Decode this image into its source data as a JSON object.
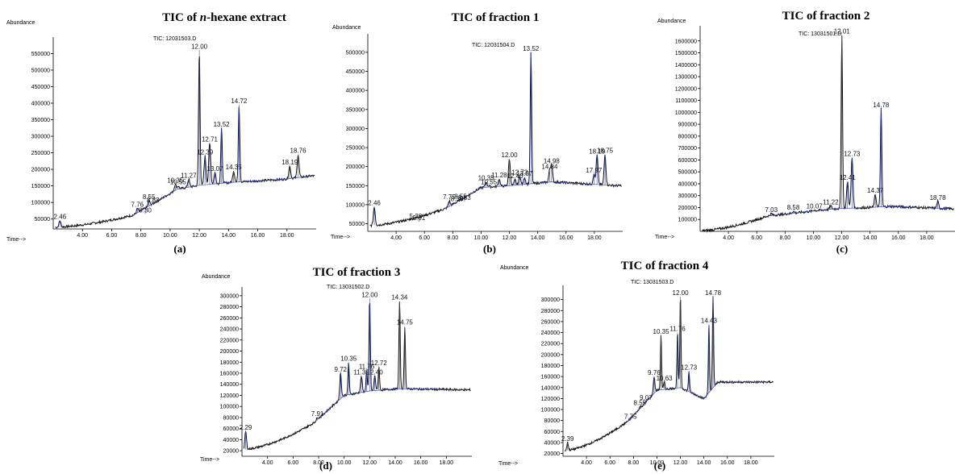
{
  "chart_data": [
    {
      "type": "line",
      "title": "TIC of n-hexane extract",
      "title_prefix": "TIC of ",
      "title_italic": "n",
      "title_suffix": "-hexane extract",
      "panel_label": "(a)",
      "trace_label": "TIC: 12031503.D",
      "ylabel": "Abundance",
      "xlabel": "Time-->",
      "xlim": [
        2.0,
        20.0
      ],
      "ylim": [
        20000,
        590000
      ],
      "yticks": [
        50000,
        100000,
        150000,
        200000,
        250000,
        300000,
        350000,
        400000,
        450000,
        500000,
        550000
      ],
      "xticks": [
        "4.00",
        "6.00",
        "8.00",
        "10.00",
        "12.00",
        "14.00",
        "16.00",
        "18.00"
      ],
      "start": 25000,
      "end": 160000,
      "baseline": [
        [
          7.5,
          62000
        ],
        [
          10.5,
          140000
        ],
        [
          12.0,
          152000
        ],
        [
          14.0,
          160000
        ],
        [
          17.8,
          170000
        ],
        [
          19.6,
          180000
        ]
      ],
      "peaks": [
        {
          "label": "2.46",
          "x": 2.46,
          "y": 45000
        },
        {
          "label": "7.76",
          "x": 7.76,
          "y": 82000
        },
        {
          "label": "8.30",
          "x": 8.3,
          "y": 65000
        },
        {
          "label": "8.55",
          "x": 8.55,
          "y": 105000
        },
        {
          "label": "8.83",
          "x": 8.83,
          "y": 95000
        },
        {
          "label": "10.35",
          "x": 10.35,
          "y": 155000
        },
        {
          "label": "10.55",
          "x": 10.55,
          "y": 150000
        },
        {
          "label": "11.27",
          "x": 11.27,
          "y": 170000
        },
        {
          "label": "12.00",
          "x": 12.0,
          "y": 560000
        },
        {
          "label": "12.39",
          "x": 12.39,
          "y": 240000
        },
        {
          "label": "12.71",
          "x": 12.71,
          "y": 280000
        },
        {
          "label": "13.07",
          "x": 13.07,
          "y": 190000
        },
        {
          "label": "13.52",
          "x": 13.52,
          "y": 325000
        },
        {
          "label": "14.35",
          "x": 14.35,
          "y": 195000
        },
        {
          "label": "14.72",
          "x": 14.72,
          "y": 395000
        },
        {
          "label": "18.19",
          "x": 18.19,
          "y": 210000
        },
        {
          "label": "18.76",
          "x": 18.76,
          "y": 245000
        }
      ]
    },
    {
      "type": "line",
      "title": "TIC of fraction 1",
      "panel_label": "(b)",
      "trace_label": "TIC: 12031504.D",
      "ylabel": "Abundance",
      "xlabel": "Time-->",
      "xlim": [
        2.0,
        20.0
      ],
      "ylim": [
        30000,
        540000
      ],
      "yticks": [
        50000,
        100000,
        150000,
        200000,
        250000,
        300000,
        350000,
        400000,
        450000,
        500000
      ],
      "xticks": [
        "4.00",
        "6.00",
        "8.00",
        "10.00",
        "12.00",
        "14.00",
        "16.00",
        "18.00"
      ],
      "start": 45000,
      "end": 140000,
      "baseline": [
        [
          7.5,
          90000
        ],
        [
          10.0,
          145000
        ],
        [
          12.0,
          150000
        ],
        [
          15.0,
          160000
        ],
        [
          19.6,
          150000
        ]
      ],
      "peaks": [
        {
          "label": "2.46",
          "x": 2.46,
          "y": 95000
        },
        {
          "label": "5.38",
          "x": 5.38,
          "y": 60000
        },
        {
          "label": "5.61",
          "x": 5.61,
          "y": 55000
        },
        {
          "label": "7.75",
          "x": 7.75,
          "y": 110000
        },
        {
          "label": "8.30",
          "x": 8.3,
          "y": 105000
        },
        {
          "label": "8.55",
          "x": 8.55,
          "y": 112000
        },
        {
          "label": "8.83",
          "x": 8.83,
          "y": 108000
        },
        {
          "label": "10.35",
          "x": 10.35,
          "y": 160000
        },
        {
          "label": "10.55",
          "x": 10.55,
          "y": 150000
        },
        {
          "label": "11.28",
          "x": 11.28,
          "y": 168000
        },
        {
          "label": "12.00",
          "x": 12.0,
          "y": 220000
        },
        {
          "label": "12.40",
          "x": 12.4,
          "y": 165000
        },
        {
          "label": "12.73",
          "x": 12.73,
          "y": 175000
        },
        {
          "label": "13.07",
          "x": 13.07,
          "y": 172000
        },
        {
          "label": "13.52",
          "x": 13.52,
          "y": 500000
        },
        {
          "label": "14.84",
          "x": 14.84,
          "y": 190000
        },
        {
          "label": "14.98",
          "x": 14.98,
          "y": 205000
        },
        {
          "label": "17.97",
          "x": 17.97,
          "y": 180000
        },
        {
          "label": "18.19",
          "x": 18.19,
          "y": 230000
        },
        {
          "label": "18.75",
          "x": 18.75,
          "y": 232000
        }
      ]
    },
    {
      "type": "line",
      "title": "TIC of fraction 2",
      "panel_label": "(c)",
      "trace_label": "TIC: 13031501.D",
      "ylabel": "Abundance",
      "xlabel": "Time-->",
      "xlim": [
        2.0,
        20.0
      ],
      "ylim": [
        0,
        1700000
      ],
      "yticks": [
        100000,
        200000,
        300000,
        400000,
        500000,
        600000,
        700000,
        800000,
        900000,
        1000000,
        1100000,
        1200000,
        1300000,
        1400000,
        1500000,
        1600000
      ],
      "xticks": [
        "4.00",
        "6.00",
        "8.00",
        "10.00",
        "12.00",
        "14.00",
        "16.00",
        "18.00"
      ],
      "start": 5000,
      "end": 160000,
      "baseline": [
        [
          6.8,
          130000
        ],
        [
          11.5,
          190000
        ],
        [
          13.8,
          200000
        ],
        [
          15.5,
          210000
        ],
        [
          19.6,
          190000
        ]
      ],
      "peaks": [
        {
          "label": "7.03",
          "x": 7.03,
          "y": 150000
        },
        {
          "label": "8.58",
          "x": 8.58,
          "y": 170000
        },
        {
          "label": "10.07",
          "x": 10.07,
          "y": 180000
        },
        {
          "label": "11.22",
          "x": 11.22,
          "y": 215000
        },
        {
          "label": "12.01",
          "x": 12.01,
          "y": 1650000
        },
        {
          "label": "12.41",
          "x": 12.41,
          "y": 420000
        },
        {
          "label": "12.73",
          "x": 12.73,
          "y": 620000
        },
        {
          "label": "14.37",
          "x": 14.37,
          "y": 310000
        },
        {
          "label": "14.78",
          "x": 14.78,
          "y": 1030000
        },
        {
          "label": "18.78",
          "x": 18.78,
          "y": 250000
        }
      ]
    },
    {
      "type": "line",
      "title": "TIC of fraction 3",
      "panel_label": "(d)",
      "trace_label": "TIC: 13031502.D",
      "ylabel": "Abundance",
      "xlabel": "Time-->",
      "xlim": [
        2.0,
        20.0
      ],
      "ylim": [
        10000,
        310000
      ],
      "yticks": [
        20000,
        40000,
        60000,
        80000,
        100000,
        120000,
        140000,
        160000,
        180000,
        200000,
        220000,
        240000,
        260000,
        280000,
        300000
      ],
      "xticks": [
        "4.00",
        "6.00",
        "8.00",
        "10.00",
        "12.00",
        "14.00",
        "16.00",
        "18.00"
      ],
      "start": 22000,
      "end": 140000,
      "baseline": [
        [
          7.6,
          70000
        ],
        [
          10.0,
          120000
        ],
        [
          12.0,
          128000
        ],
        [
          14.2,
          132000
        ],
        [
          19.6,
          130000
        ]
      ],
      "peaks": [
        {
          "label": "2.29",
          "x": 2.29,
          "y": 55000
        },
        {
          "label": "7.91",
          "x": 7.91,
          "y": 80000
        },
        {
          "label": "9.72",
          "x": 9.72,
          "y": 160000
        },
        {
          "label": "10.35",
          "x": 10.35,
          "y": 180000
        },
        {
          "label": "11.35",
          "x": 11.35,
          "y": 155000
        },
        {
          "label": "11.76",
          "x": 11.76,
          "y": 165000
        },
        {
          "label": "12.00",
          "x": 12.0,
          "y": 295000
        },
        {
          "label": "12.40",
          "x": 12.4,
          "y": 155000
        },
        {
          "label": "12.72",
          "x": 12.72,
          "y": 172000
        },
        {
          "label": "14.34",
          "x": 14.34,
          "y": 290000
        },
        {
          "label": "14.75",
          "x": 14.75,
          "y": 245000
        }
      ]
    },
    {
      "type": "line",
      "title": "TIC of fraction 4",
      "panel_label": "(e)",
      "trace_label": "TIC: 13031503.D",
      "ylabel": "Abundance",
      "xlabel": "Time-->",
      "xlim": [
        2.0,
        20.0
      ],
      "ylim": [
        15000,
        320000
      ],
      "yticks": [
        20000,
        40000,
        60000,
        80000,
        100000,
        120000,
        140000,
        160000,
        180000,
        200000,
        220000,
        240000,
        260000,
        280000,
        300000
      ],
      "xticks": [
        "4.00",
        "6.00",
        "8.00",
        "10.00",
        "12.00",
        "14.00",
        "16.00",
        "18.00"
      ],
      "start": 25000,
      "end": 150000,
      "baseline": [
        [
          7.6,
          80000
        ],
        [
          10.0,
          135000
        ],
        [
          12.0,
          140000
        ],
        [
          14.0,
          120000
        ],
        [
          15.2,
          150000
        ],
        [
          19.6,
          150000
        ]
      ],
      "peaks": [
        {
          "label": "2.39",
          "x": 2.39,
          "y": 40000
        },
        {
          "label": "7.75",
          "x": 7.75,
          "y": 80000
        },
        {
          "label": "8.55",
          "x": 8.55,
          "y": 105000
        },
        {
          "label": "9.07",
          "x": 9.07,
          "y": 115000
        },
        {
          "label": "9.76",
          "x": 9.76,
          "y": 160000
        },
        {
          "label": "10.35",
          "x": 10.35,
          "y": 235000
        },
        {
          "label": "10.63",
          "x": 10.63,
          "y": 150000
        },
        {
          "label": "11.76",
          "x": 11.76,
          "y": 240000
        },
        {
          "label": "12.00",
          "x": 12.0,
          "y": 305000
        },
        {
          "label": "12.73",
          "x": 12.73,
          "y": 170000
        },
        {
          "label": "14.43",
          "x": 14.43,
          "y": 255000
        },
        {
          "label": "14.78",
          "x": 14.78,
          "y": 305000
        }
      ]
    }
  ]
}
